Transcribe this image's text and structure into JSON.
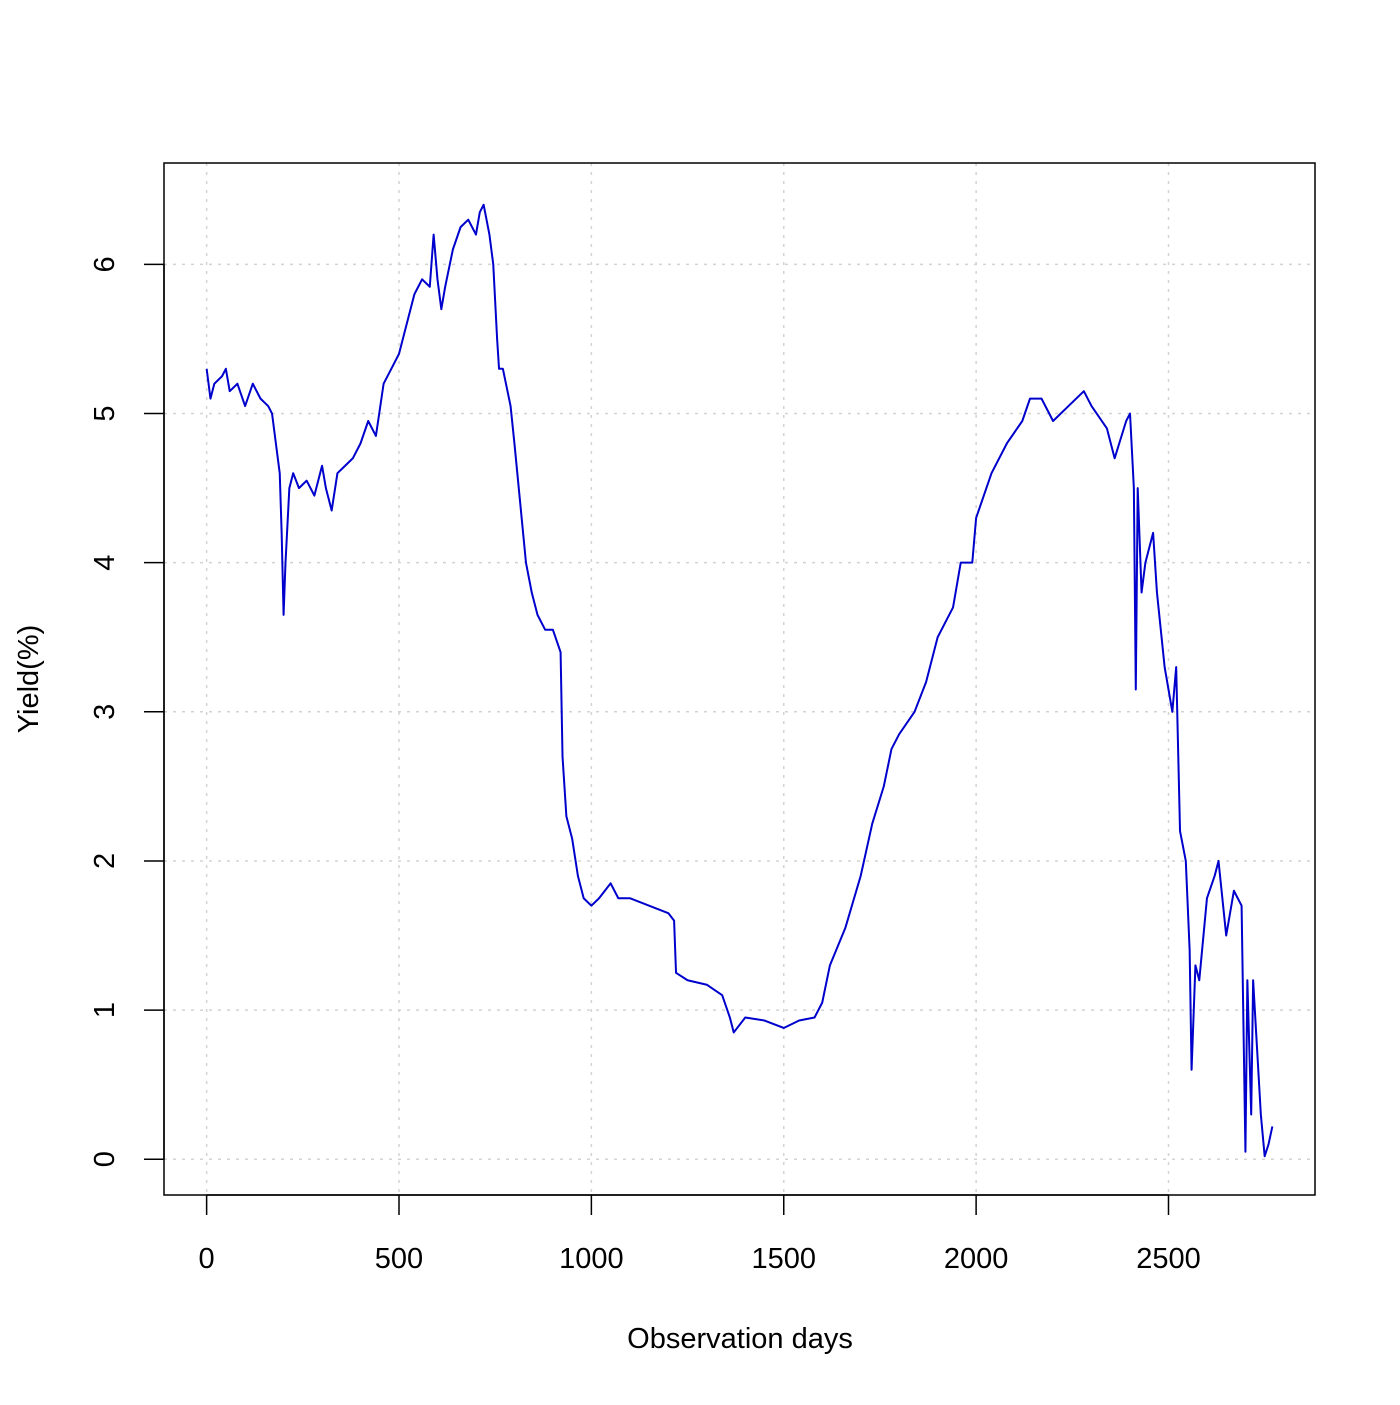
{
  "chart_data": {
    "type": "line",
    "xlabel": "Observation days",
    "ylabel": "Yield(%)",
    "xlim": [
      -110.8,
      2880.8
    ],
    "ylim": [
      -0.24,
      6.68
    ],
    "xticks": [
      0,
      500,
      1000,
      1500,
      2000,
      2500
    ],
    "yticks": [
      0,
      1,
      2,
      3,
      4,
      5,
      6
    ],
    "grid": true,
    "series": [
      {
        "color": "#0000cd",
        "x": [
          0,
          10,
          20,
          40,
          50,
          60,
          80,
          100,
          120,
          140,
          160,
          170,
          180,
          190,
          195,
          200,
          205,
          215,
          225,
          240,
          260,
          280,
          300,
          310,
          325,
          340,
          360,
          380,
          400,
          420,
          440,
          460,
          480,
          500,
          520,
          540,
          560,
          580,
          590,
          600,
          610,
          620,
          640,
          660,
          680,
          700,
          710,
          720,
          735,
          745,
          755,
          760,
          770,
          790,
          800,
          815,
          830,
          845,
          860,
          880,
          900,
          920,
          925,
          935,
          950,
          965,
          980,
          1000,
          1020,
          1050,
          1070,
          1100,
          1150,
          1200,
          1215,
          1220,
          1250,
          1300,
          1340,
          1360,
          1370,
          1400,
          1450,
          1500,
          1540,
          1580,
          1600,
          1620,
          1660,
          1700,
          1730,
          1760,
          1780,
          1800,
          1840,
          1870,
          1900,
          1940,
          1960,
          1990,
          2000,
          2040,
          2080,
          2120,
          2140,
          2170,
          2200,
          2240,
          2280,
          2300,
          2340,
          2360,
          2390,
          2400,
          2410,
          2415,
          2420,
          2430,
          2440,
          2460,
          2470,
          2490,
          2510,
          2520,
          2530,
          2545,
          2555,
          2560,
          2570,
          2580,
          2600,
          2620,
          2630,
          2650,
          2670,
          2690,
          2700,
          2705,
          2715,
          2720,
          2740,
          2750,
          2760,
          2770
        ],
        "values": [
          5.3,
          5.1,
          5.2,
          5.25,
          5.3,
          5.15,
          5.2,
          5.05,
          5.2,
          5.1,
          5.05,
          5.0,
          4.8,
          4.6,
          4.2,
          3.65,
          4.0,
          4.5,
          4.6,
          4.5,
          4.55,
          4.45,
          4.65,
          4.5,
          4.35,
          4.6,
          4.65,
          4.7,
          4.8,
          4.95,
          4.85,
          5.2,
          5.3,
          5.4,
          5.6,
          5.8,
          5.9,
          5.85,
          6.2,
          5.9,
          5.7,
          5.85,
          6.1,
          6.25,
          6.3,
          6.2,
          6.35,
          6.4,
          6.2,
          6.0,
          5.5,
          5.3,
          5.3,
          5.05,
          4.8,
          4.4,
          4.0,
          3.8,
          3.65,
          3.55,
          3.55,
          3.4,
          2.7,
          2.3,
          2.15,
          1.9,
          1.75,
          1.7,
          1.75,
          1.85,
          1.75,
          1.75,
          1.7,
          1.65,
          1.6,
          1.25,
          1.2,
          1.17,
          1.1,
          0.95,
          0.85,
          0.95,
          0.93,
          0.88,
          0.93,
          0.95,
          1.05,
          1.3,
          1.55,
          1.9,
          2.25,
          2.5,
          2.75,
          2.85,
          3.0,
          3.2,
          3.5,
          3.7,
          4.0,
          4.0,
          4.3,
          4.6,
          4.8,
          4.95,
          5.1,
          5.1,
          4.95,
          5.05,
          5.15,
          5.05,
          4.9,
          4.7,
          4.95,
          5.0,
          4.5,
          3.15,
          4.5,
          3.8,
          4.0,
          4.2,
          3.8,
          3.3,
          3.0,
          3.3,
          2.2,
          2.0,
          1.4,
          0.6,
          1.3,
          1.2,
          1.75,
          1.9,
          2.0,
          1.5,
          1.8,
          1.7,
          0.05,
          1.2,
          0.3,
          1.2,
          0.3,
          0.02,
          0.1,
          0.22
        ]
      }
    ]
  }
}
